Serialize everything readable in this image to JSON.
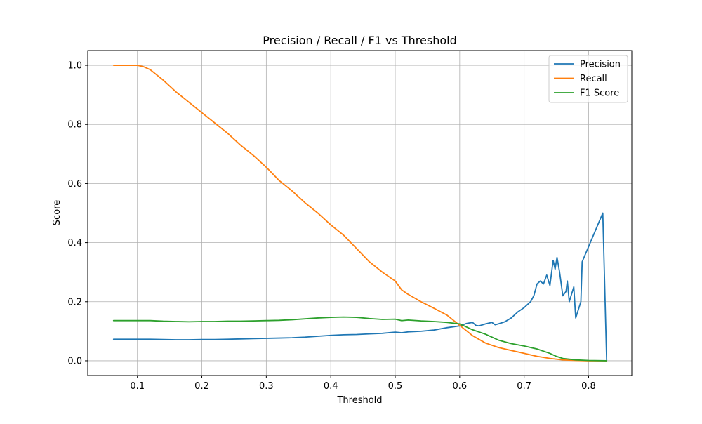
{
  "chart_data": {
    "type": "line",
    "title": "Precision / Recall / F1 vs Threshold",
    "xlabel": "Threshold",
    "ylabel": "Score",
    "xlim": [
      0.023,
      0.867
    ],
    "ylim": [
      -0.05,
      1.05
    ],
    "xticks": [
      0.1,
      0.2,
      0.3,
      0.4,
      0.5,
      0.6,
      0.7,
      0.8
    ],
    "xtick_labels": [
      "0.1",
      "0.2",
      "0.3",
      "0.4",
      "0.5",
      "0.6",
      "0.7",
      "0.8"
    ],
    "yticks": [
      0.0,
      0.2,
      0.4,
      0.6,
      0.8,
      1.0
    ],
    "ytick_labels": [
      "0.0",
      "0.2",
      "0.4",
      "0.6",
      "0.8",
      "1.0"
    ],
    "grid": true,
    "legend_position": "top-right",
    "series": [
      {
        "name": "Precision",
        "color": "#1f77b4",
        "points": [
          [
            0.063,
            0.073
          ],
          [
            0.08,
            0.073
          ],
          [
            0.1,
            0.073
          ],
          [
            0.12,
            0.073
          ],
          [
            0.14,
            0.072
          ],
          [
            0.16,
            0.071
          ],
          [
            0.18,
            0.071
          ],
          [
            0.2,
            0.072
          ],
          [
            0.22,
            0.072
          ],
          [
            0.24,
            0.073
          ],
          [
            0.26,
            0.074
          ],
          [
            0.28,
            0.075
          ],
          [
            0.3,
            0.076
          ],
          [
            0.32,
            0.077
          ],
          [
            0.34,
            0.078
          ],
          [
            0.36,
            0.08
          ],
          [
            0.38,
            0.083
          ],
          [
            0.4,
            0.086
          ],
          [
            0.42,
            0.088
          ],
          [
            0.44,
            0.089
          ],
          [
            0.46,
            0.091
          ],
          [
            0.48,
            0.093
          ],
          [
            0.5,
            0.097
          ],
          [
            0.51,
            0.095
          ],
          [
            0.52,
            0.098
          ],
          [
            0.54,
            0.1
          ],
          [
            0.56,
            0.104
          ],
          [
            0.58,
            0.112
          ],
          [
            0.6,
            0.118
          ],
          [
            0.61,
            0.126
          ],
          [
            0.62,
            0.13
          ],
          [
            0.625,
            0.12
          ],
          [
            0.63,
            0.118
          ],
          [
            0.64,
            0.125
          ],
          [
            0.65,
            0.13
          ],
          [
            0.655,
            0.122
          ],
          [
            0.66,
            0.125
          ],
          [
            0.67,
            0.132
          ],
          [
            0.68,
            0.145
          ],
          [
            0.69,
            0.165
          ],
          [
            0.7,
            0.18
          ],
          [
            0.71,
            0.2
          ],
          [
            0.715,
            0.22
          ],
          [
            0.72,
            0.26
          ],
          [
            0.725,
            0.27
          ],
          [
            0.73,
            0.26
          ],
          [
            0.735,
            0.29
          ],
          [
            0.74,
            0.255
          ],
          [
            0.745,
            0.34
          ],
          [
            0.748,
            0.31
          ],
          [
            0.751,
            0.35
          ],
          [
            0.755,
            0.3
          ],
          [
            0.76,
            0.22
          ],
          [
            0.765,
            0.235
          ],
          [
            0.767,
            0.27
          ],
          [
            0.77,
            0.2
          ],
          [
            0.777,
            0.25
          ],
          [
            0.78,
            0.145
          ],
          [
            0.788,
            0.2
          ],
          [
            0.79,
            0.335
          ],
          [
            0.822,
            0.5
          ],
          [
            0.828,
            0.0
          ]
        ]
      },
      {
        "name": "Recall",
        "color": "#ff7f0e",
        "points": [
          [
            0.063,
            1.0
          ],
          [
            0.1,
            1.0
          ],
          [
            0.11,
            0.995
          ],
          [
            0.12,
            0.985
          ],
          [
            0.14,
            0.95
          ],
          [
            0.16,
            0.91
          ],
          [
            0.18,
            0.875
          ],
          [
            0.2,
            0.84
          ],
          [
            0.22,
            0.805
          ],
          [
            0.24,
            0.77
          ],
          [
            0.26,
            0.73
          ],
          [
            0.28,
            0.695
          ],
          [
            0.3,
            0.655
          ],
          [
            0.32,
            0.61
          ],
          [
            0.34,
            0.575
          ],
          [
            0.36,
            0.535
          ],
          [
            0.38,
            0.5
          ],
          [
            0.4,
            0.46
          ],
          [
            0.42,
            0.425
          ],
          [
            0.44,
            0.38
          ],
          [
            0.46,
            0.335
          ],
          [
            0.48,
            0.3
          ],
          [
            0.5,
            0.27
          ],
          [
            0.51,
            0.24
          ],
          [
            0.52,
            0.225
          ],
          [
            0.54,
            0.2
          ],
          [
            0.56,
            0.178
          ],
          [
            0.58,
            0.155
          ],
          [
            0.6,
            0.12
          ],
          [
            0.62,
            0.085
          ],
          [
            0.64,
            0.06
          ],
          [
            0.66,
            0.045
          ],
          [
            0.68,
            0.035
          ],
          [
            0.7,
            0.025
          ],
          [
            0.72,
            0.015
          ],
          [
            0.74,
            0.008
          ],
          [
            0.76,
            0.003
          ],
          [
            0.78,
            0.001
          ],
          [
            0.8,
            0.0
          ],
          [
            0.828,
            0.0
          ]
        ]
      },
      {
        "name": "F1 Score",
        "color": "#2ca02c",
        "points": [
          [
            0.063,
            0.136
          ],
          [
            0.08,
            0.136
          ],
          [
            0.1,
            0.136
          ],
          [
            0.12,
            0.136
          ],
          [
            0.14,
            0.134
          ],
          [
            0.16,
            0.133
          ],
          [
            0.18,
            0.132
          ],
          [
            0.2,
            0.133
          ],
          [
            0.22,
            0.133
          ],
          [
            0.24,
            0.134
          ],
          [
            0.26,
            0.134
          ],
          [
            0.28,
            0.135
          ],
          [
            0.3,
            0.136
          ],
          [
            0.32,
            0.137
          ],
          [
            0.34,
            0.139
          ],
          [
            0.36,
            0.142
          ],
          [
            0.38,
            0.145
          ],
          [
            0.4,
            0.147
          ],
          [
            0.42,
            0.148
          ],
          [
            0.44,
            0.147
          ],
          [
            0.46,
            0.143
          ],
          [
            0.48,
            0.14
          ],
          [
            0.5,
            0.141
          ],
          [
            0.51,
            0.136
          ],
          [
            0.52,
            0.138
          ],
          [
            0.54,
            0.135
          ],
          [
            0.56,
            0.133
          ],
          [
            0.58,
            0.13
          ],
          [
            0.6,
            0.125
          ],
          [
            0.62,
            0.105
          ],
          [
            0.64,
            0.09
          ],
          [
            0.66,
            0.07
          ],
          [
            0.68,
            0.058
          ],
          [
            0.7,
            0.05
          ],
          [
            0.72,
            0.04
          ],
          [
            0.74,
            0.025
          ],
          [
            0.75,
            0.015
          ],
          [
            0.76,
            0.008
          ],
          [
            0.78,
            0.003
          ],
          [
            0.8,
            0.001
          ],
          [
            0.828,
            0.0
          ]
        ]
      }
    ]
  }
}
